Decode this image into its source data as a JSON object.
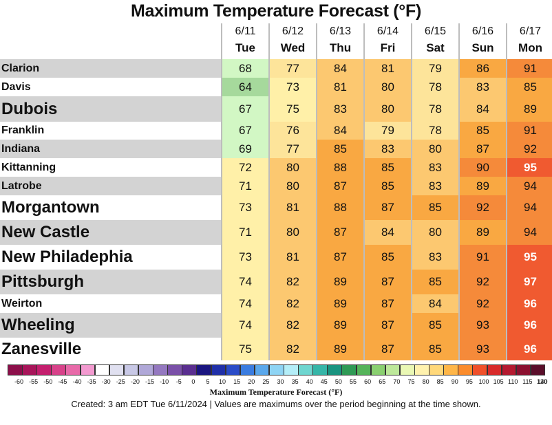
{
  "chart_data": {
    "type": "table",
    "title": "Maximum Temperature Forecast (°F)",
    "columns": [
      {
        "date": "6/11",
        "day": "Tue"
      },
      {
        "date": "6/12",
        "day": "Wed"
      },
      {
        "date": "6/13",
        "day": "Thu"
      },
      {
        "date": "6/14",
        "day": "Fri"
      },
      {
        "date": "6/15",
        "day": "Sat"
      },
      {
        "date": "6/16",
        "day": "Sun"
      },
      {
        "date": "6/17",
        "day": "Mon"
      }
    ],
    "rows": [
      {
        "city": "Clarion",
        "emphasis": false,
        "values": [
          68,
          77,
          84,
          81,
          79,
          86,
          91
        ]
      },
      {
        "city": "Davis",
        "emphasis": false,
        "values": [
          64,
          73,
          81,
          80,
          78,
          83,
          85
        ]
      },
      {
        "city": "Dubois",
        "emphasis": true,
        "values": [
          67,
          75,
          83,
          80,
          78,
          84,
          89
        ]
      },
      {
        "city": "Franklin",
        "emphasis": false,
        "values": [
          67,
          76,
          84,
          79,
          78,
          85,
          91
        ]
      },
      {
        "city": "Indiana",
        "emphasis": false,
        "values": [
          69,
          77,
          85,
          83,
          80,
          87,
          92
        ]
      },
      {
        "city": "Kittanning",
        "emphasis": false,
        "values": [
          72,
          80,
          88,
          85,
          83,
          90,
          95
        ]
      },
      {
        "city": "Latrobe",
        "emphasis": false,
        "values": [
          71,
          80,
          87,
          85,
          83,
          89,
          94
        ]
      },
      {
        "city": "Morgantown",
        "emphasis": true,
        "values": [
          73,
          81,
          88,
          87,
          85,
          92,
          94
        ]
      },
      {
        "city": "New Castle",
        "emphasis": true,
        "values": [
          71,
          80,
          87,
          84,
          80,
          89,
          94
        ]
      },
      {
        "city": "New Philadephia",
        "emphasis": true,
        "values": [
          73,
          81,
          87,
          85,
          83,
          91,
          95
        ]
      },
      {
        "city": "Pittsburgh",
        "emphasis": true,
        "values": [
          74,
          82,
          89,
          87,
          85,
          92,
          97
        ]
      },
      {
        "city": "Weirton",
        "emphasis": false,
        "values": [
          74,
          82,
          89,
          87,
          84,
          92,
          96
        ]
      },
      {
        "city": "Wheeling",
        "emphasis": true,
        "values": [
          74,
          82,
          89,
          87,
          85,
          93,
          96
        ]
      },
      {
        "city": "Zanesville",
        "emphasis": true,
        "values": [
          75,
          82,
          89,
          87,
          85,
          93,
          96
        ]
      }
    ],
    "colorbar": {
      "title": "Maximum Temperature Forecast (°F)",
      "ticks": [
        "-60",
        "-55",
        "-50",
        "-45",
        "-40",
        "-35",
        "-30",
        "-25",
        "-20",
        "-15",
        "-10",
        "-5",
        "0",
        "5",
        "10",
        "15",
        "20",
        "25",
        "30",
        "35",
        "40",
        "45",
        "50",
        "55",
        "60",
        "65",
        "70",
        "75",
        "80",
        "85",
        "90",
        "95",
        "100",
        "105",
        "110",
        "115",
        "120",
        "140"
      ],
      "colors": [
        "#8c0f4a",
        "#a8155a",
        "#c41f6e",
        "#d8428a",
        "#e86aa9",
        "#f39ad0",
        "#ffffff",
        "#e0e0f0",
        "#c8c8e6",
        "#b0a8d8",
        "#9478c0",
        "#7a50a8",
        "#5a2e90",
        "#1a1580",
        "#2030a8",
        "#2a4cc8",
        "#3a7ce0",
        "#5aa8ec",
        "#8ed4f4",
        "#b4eef8",
        "#6fd6d0",
        "#36b6a8",
        "#1a9480",
        "#2f9a55",
        "#55b45a",
        "#8ad070",
        "#bde89a",
        "#eaf8b4",
        "#fff2ae",
        "#ffd87a",
        "#ffb648",
        "#fb8c2c",
        "#f0502a",
        "#d82a2a",
        "#b51a30",
        "#8c1030",
        "#5a0e2a"
      ],
      "caption_values": "Values are maximums over the period beginning at the time shown."
    }
  },
  "footer": {
    "created": "Created: 3 am EDT Tue 6/11/2024",
    "separator": "|",
    "note": "Values are maximums over the period beginning at the time shown."
  }
}
